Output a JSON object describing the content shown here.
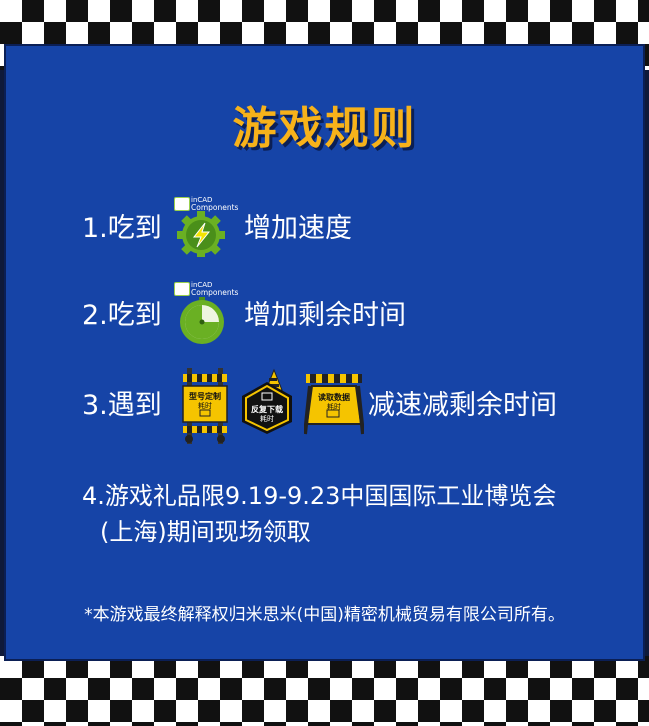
{
  "title": "游戏规则",
  "badge": {
    "line1": "inCAD",
    "line2": "Components"
  },
  "rules": [
    {
      "prefix": "1.吃到",
      "suffix": "增加速度",
      "icon": "lightning-gear-icon"
    },
    {
      "prefix": "2.吃到",
      "suffix": "增加剩余时间",
      "icon": "clock-icon"
    },
    {
      "prefix": "3.遇到",
      "suffix": "减速减剩余时间",
      "icon": "obstacle-icons"
    }
  ],
  "obstacles": [
    {
      "name": "barrier-sign-custom",
      "line1": "型号定制",
      "line2": "耗时"
    },
    {
      "name": "hex-sign-download",
      "line1": "反复下载",
      "line2": "耗时"
    },
    {
      "name": "barrier-sign-read",
      "line1": "读取数据",
      "line2": "耗时"
    }
  ],
  "rule4": {
    "line1": "4.游戏礼品限9.19-9.23中国国际工业博览会",
    "line2": "(上海)期间现场领取"
  },
  "footnote": "*本游戏最终解释权归米思米(中国)精密机械贸易有限公司所有。",
  "colors": {
    "panel": "#1644a7",
    "title": "#f7b21a",
    "text": "#ffffff",
    "green": "#6ab023",
    "yellow": "#f5c400"
  }
}
